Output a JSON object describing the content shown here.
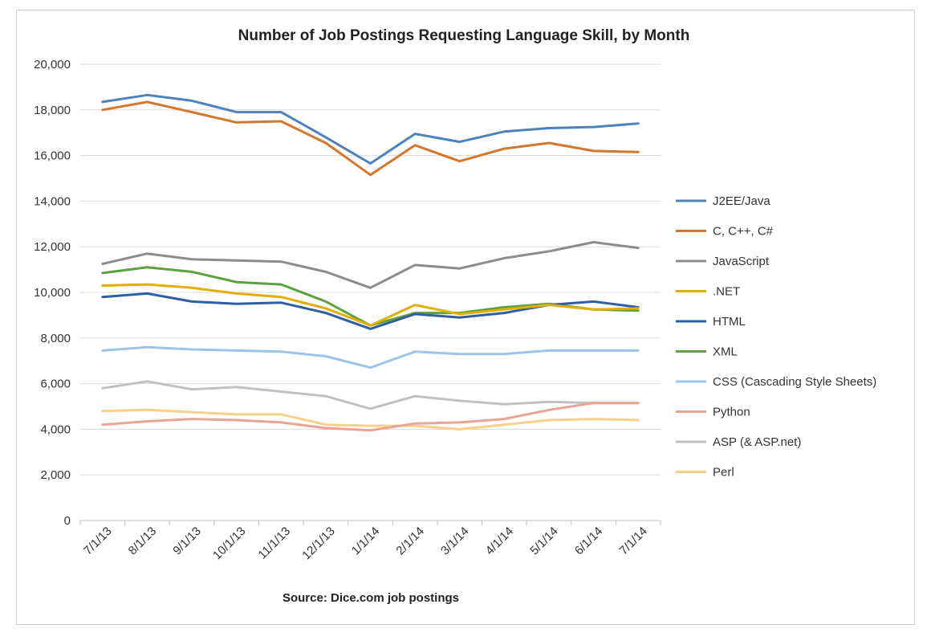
{
  "chart_data": {
    "type": "line",
    "title": "Number of Job Postings Requesting Language Skill, by Month",
    "source": "Source: Dice.com job postings",
    "xlabel": "",
    "ylabel": "",
    "categories": [
      "7/1/13",
      "8/1/13",
      "9/1/13",
      "10/1/13",
      "11/1/13",
      "12/1/13",
      "1/1/14",
      "2/1/14",
      "3/1/14",
      "4/1/14",
      "5/1/14",
      "6/1/14",
      "7/1/14"
    ],
    "ylim": [
      0,
      20000
    ],
    "yticks": [
      0,
      2000,
      4000,
      6000,
      8000,
      10000,
      12000,
      14000,
      16000,
      18000,
      20000
    ],
    "ytick_labels": [
      "0",
      "2,000",
      "4,000",
      "6,000",
      "8,000",
      "10,000",
      "12,000",
      "14,000",
      "16,000",
      "18,000",
      "20,000"
    ],
    "grid": "horizontal",
    "legend_position": "right",
    "series": [
      {
        "name": "J2EE/Java",
        "color": "#4f81bd",
        "values": [
          18350,
          18650,
          18400,
          17900,
          17900,
          16800,
          15650,
          16950,
          16600,
          17050,
          17200,
          17250,
          17400
        ]
      },
      {
        "name": "C, C++, C#",
        "color": "#d4762b",
        "values": [
          18000,
          18350,
          17900,
          17450,
          17500,
          16550,
          15150,
          16450,
          15750,
          16300,
          16550,
          16200,
          16150
        ]
      },
      {
        "name": "JavaScript",
        "color": "#8c8c8c",
        "values": [
          11250,
          11700,
          11450,
          11400,
          11350,
          10900,
          10200,
          11200,
          11050,
          11500,
          11800,
          12200,
          11950
        ]
      },
      {
        "name": ".NET",
        "color": "#e2ae00",
        "values": [
          10300,
          10350,
          10200,
          9950,
          9800,
          9300,
          8550,
          9450,
          9050,
          9250,
          9450,
          9250,
          9300
        ]
      },
      {
        "name": "HTML",
        "color": "#2e5fa3",
        "values": [
          9800,
          9950,
          9600,
          9500,
          9550,
          9100,
          8400,
          9050,
          8900,
          9100,
          9450,
          9600,
          9350
        ]
      },
      {
        "name": "XML",
        "color": "#5ea13f",
        "values": [
          10850,
          11100,
          10900,
          10450,
          10350,
          9600,
          8550,
          9100,
          9100,
          9350,
          9500,
          9250,
          9200
        ]
      },
      {
        "name": "CSS (Cascading Style Sheets)",
        "color": "#9dc3e6",
        "values": [
          7450,
          7600,
          7500,
          7450,
          7400,
          7200,
          6700,
          7400,
          7300,
          7300,
          7450,
          7450,
          7450
        ]
      },
      {
        "name": "Python",
        "color": "#e8a596",
        "values": [
          4200,
          4350,
          4450,
          4400,
          4300,
          4050,
          3950,
          4250,
          4300,
          4450,
          4850,
          5150,
          5150
        ]
      },
      {
        "name": "ASP (& ASP.net)",
        "color": "#c0c0c0",
        "values": [
          5800,
          6100,
          5750,
          5850,
          5650,
          5450,
          4900,
          5450,
          5250,
          5100,
          5200,
          5150,
          5150
        ]
      },
      {
        "name": "Perl",
        "color": "#f7d08a",
        "values": [
          4800,
          4850,
          4750,
          4650,
          4650,
          4200,
          4150,
          4150,
          4000,
          4200,
          4400,
          4450,
          4400
        ]
      }
    ]
  }
}
